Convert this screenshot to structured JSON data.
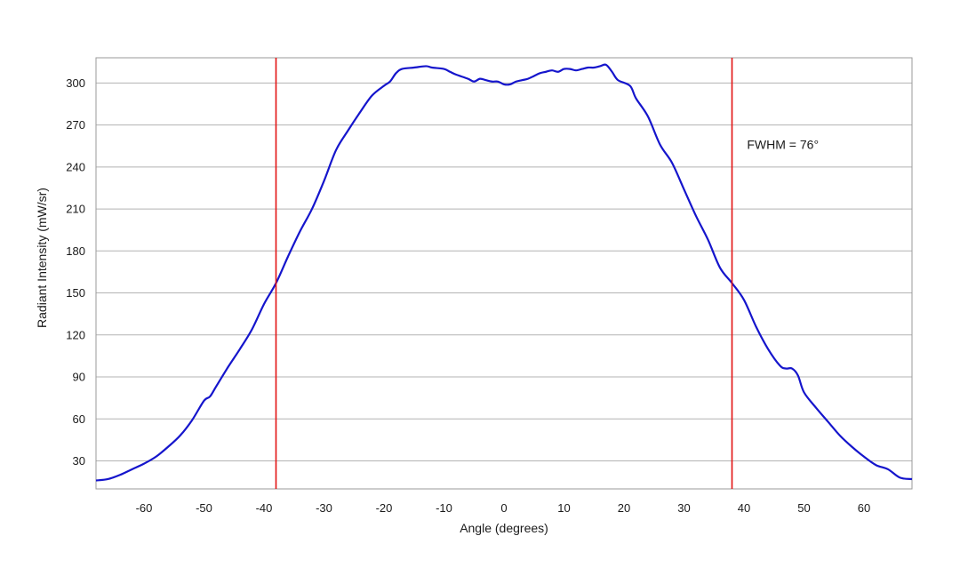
{
  "chart_data": {
    "type": "line",
    "title": "",
    "xlabel": "Angle (degrees)",
    "ylabel": "Radiant Intensity (mW/sr)",
    "xlim": [
      -68,
      68
    ],
    "ylim": [
      10,
      318
    ],
    "x_ticks": [
      -60,
      -50,
      -40,
      -30,
      -20,
      -10,
      0,
      10,
      20,
      30,
      40,
      50,
      60
    ],
    "y_ticks": [
      30,
      60,
      90,
      120,
      150,
      180,
      210,
      240,
      270,
      300
    ],
    "grid": "horizontal",
    "legend": "none",
    "line_color": "#1515cc",
    "marker_color": "#e31212",
    "series": [
      {
        "points": [
          [
            -68,
            16
          ],
          [
            -66,
            17
          ],
          [
            -64,
            20
          ],
          [
            -62,
            24
          ],
          [
            -60,
            28
          ],
          [
            -58,
            33
          ],
          [
            -56,
            40
          ],
          [
            -54,
            48
          ],
          [
            -52,
            59
          ],
          [
            -50,
            73
          ],
          [
            -49,
            76
          ],
          [
            -48,
            83
          ],
          [
            -46,
            97
          ],
          [
            -44,
            110
          ],
          [
            -42,
            124
          ],
          [
            -40,
            142
          ],
          [
            -38,
            157
          ],
          [
            -36,
            176
          ],
          [
            -34,
            194
          ],
          [
            -32,
            210
          ],
          [
            -30,
            230
          ],
          [
            -28,
            252
          ],
          [
            -26,
            266
          ],
          [
            -24,
            279
          ],
          [
            -22,
            291
          ],
          [
            -20,
            298
          ],
          [
            -19,
            301
          ],
          [
            -18,
            307
          ],
          [
            -17,
            310
          ],
          [
            -15,
            311
          ],
          [
            -13,
            312
          ],
          [
            -12,
            311
          ],
          [
            -10,
            310
          ],
          [
            -9,
            308
          ],
          [
            -8,
            306
          ],
          [
            -6,
            303
          ],
          [
            -5,
            301
          ],
          [
            -4,
            303
          ],
          [
            -3,
            302
          ],
          [
            -2,
            301
          ],
          [
            -1,
            301
          ],
          [
            0,
            299
          ],
          [
            1,
            299
          ],
          [
            2,
            301
          ],
          [
            3,
            302
          ],
          [
            4,
            303
          ],
          [
            5,
            305
          ],
          [
            6,
            307
          ],
          [
            7,
            308
          ],
          [
            8,
            309
          ],
          [
            9,
            308
          ],
          [
            10,
            310
          ],
          [
            11,
            310
          ],
          [
            12,
            309
          ],
          [
            13,
            310
          ],
          [
            14,
            311
          ],
          [
            15,
            311
          ],
          [
            16,
            312
          ],
          [
            17,
            313
          ],
          [
            18,
            308
          ],
          [
            19,
            302
          ],
          [
            21,
            298
          ],
          [
            22,
            289
          ],
          [
            24,
            276
          ],
          [
            26,
            256
          ],
          [
            28,
            243
          ],
          [
            30,
            224
          ],
          [
            32,
            205
          ],
          [
            34,
            188
          ],
          [
            36,
            168
          ],
          [
            38,
            157
          ],
          [
            40,
            145
          ],
          [
            42,
            126
          ],
          [
            44,
            110
          ],
          [
            46,
            98
          ],
          [
            47,
            96
          ],
          [
            48,
            96
          ],
          [
            49,
            91
          ],
          [
            50,
            79
          ],
          [
            52,
            68
          ],
          [
            54,
            58
          ],
          [
            56,
            48
          ],
          [
            58,
            40
          ],
          [
            60,
            33
          ],
          [
            62,
            27
          ],
          [
            64,
            24
          ],
          [
            66,
            18
          ],
          [
            68,
            17
          ]
        ]
      }
    ],
    "markers": [
      {
        "x": -38,
        "type": "vertical-line"
      },
      {
        "x": 38,
        "type": "vertical-line"
      }
    ],
    "annotations": [
      {
        "text": "FWHM = 76°",
        "x": 40.5,
        "y": 253
      }
    ]
  }
}
